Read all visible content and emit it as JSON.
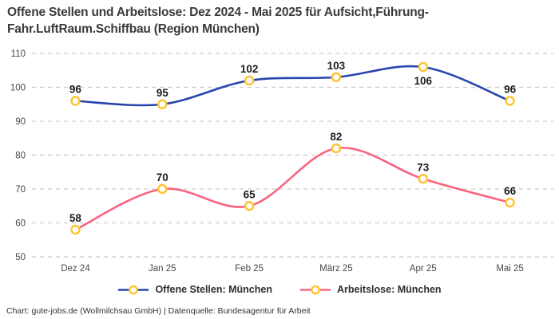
{
  "title": "Offene Stellen und Arbeitslose: Dez 2024 - Mai 2025 für Aufsicht,Führung-\nFahr.LuftRaum.Schiffbau (Region München)",
  "footer": "Chart: gute-jobs.de (Wollmilchsau GmbH) | Datenquelle: Bundesagentur für Arbeit",
  "colors": {
    "series_offene_stellen": "#2745ae",
    "series_arbeitslose": "#fa637e",
    "marker_ring": "#fdc432",
    "marker_fill": "#ffffff",
    "grid": "#cccccc",
    "tick_text": "#474747",
    "label_text": "#1d1d1d"
  },
  "chart_data": {
    "type": "line",
    "title": "Offene Stellen und Arbeitslose: Dez 2024 - Mai 2025 für Aufsicht,Führung-Fahr.LuftRaum.Schiffbau (Region München)",
    "categories": [
      "Dez 24",
      "Jan 25",
      "Feb 25",
      "März 25",
      "Apr 25",
      "Mai 25"
    ],
    "series": [
      {
        "name": "Offene Stellen: München",
        "values": [
          96,
          95,
          102,
          103,
          106,
          96
        ],
        "color_key": "series_offene_stellen",
        "label_positions": [
          "above",
          "above",
          "above",
          "above",
          "below",
          "above"
        ]
      },
      {
        "name": "Arbeitslose: München",
        "values": [
          58,
          70,
          65,
          82,
          73,
          66
        ],
        "color_key": "series_arbeitslose",
        "label_positions": [
          "above",
          "above",
          "above",
          "above",
          "above",
          "above"
        ]
      }
    ],
    "xlabel": "",
    "ylabel": "",
    "ylim": [
      50,
      110
    ],
    "ytick_step": 10,
    "yticks": [
      50,
      60,
      70,
      80,
      90,
      100,
      110
    ],
    "grid": "dashed-horizontal",
    "curve": "smooth",
    "legend_position": "bottom-center",
    "marker": "ring"
  }
}
